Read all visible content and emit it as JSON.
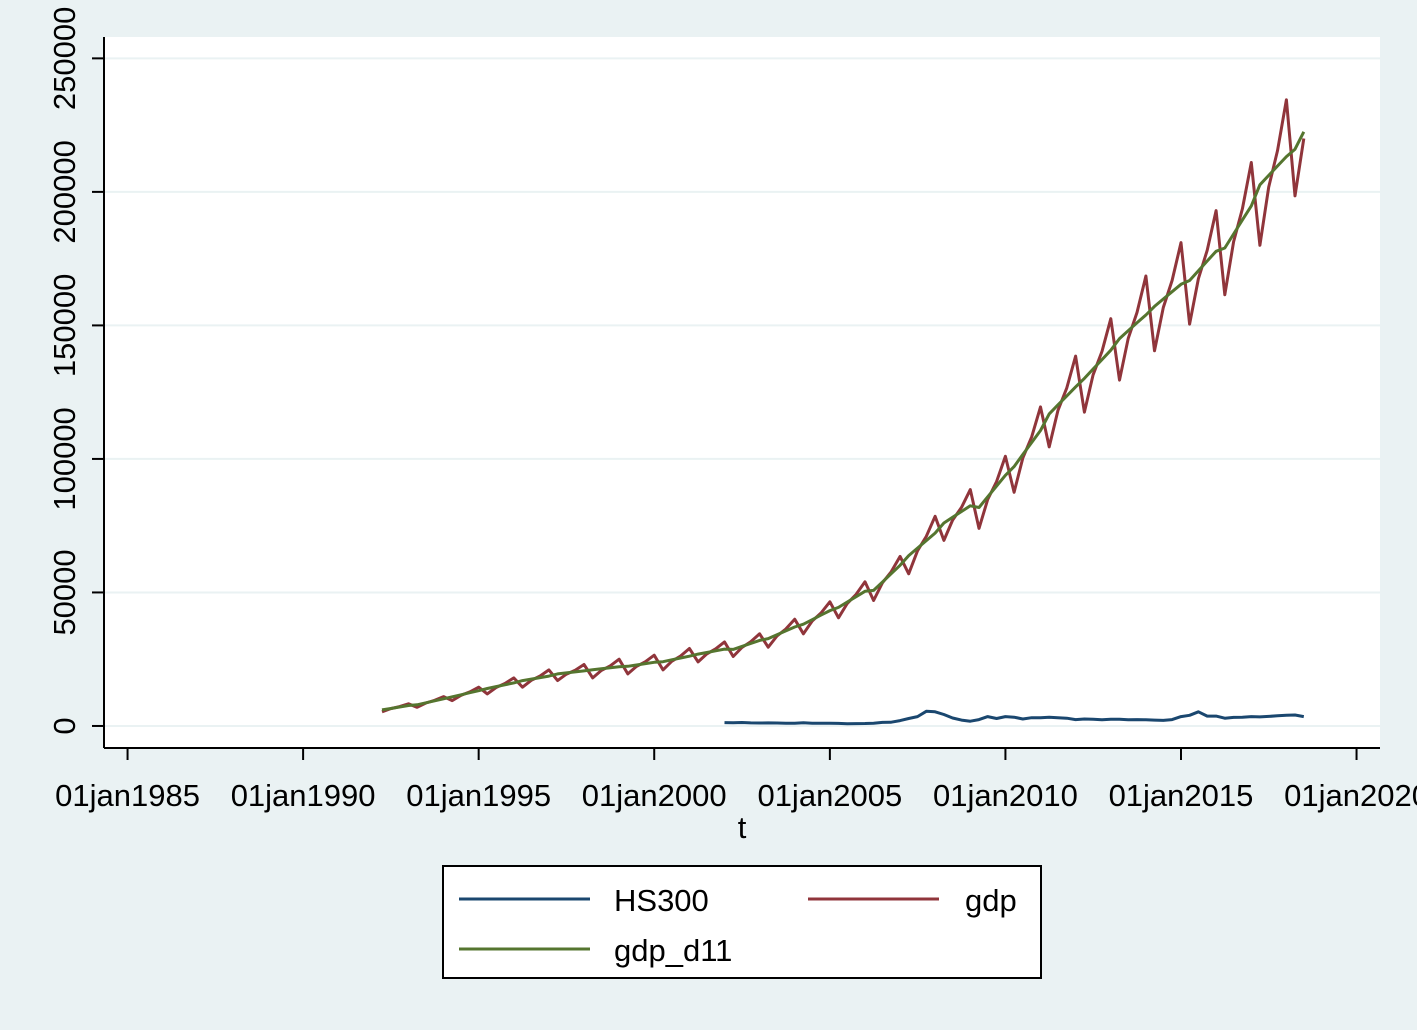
{
  "chart_data": {
    "type": "line",
    "x_label": "t",
    "x": [
      "1992-04-01",
      "1992-07-01",
      "1992-10-01",
      "1993-01-01",
      "1993-04-01",
      "1993-07-01",
      "1993-10-01",
      "1994-01-01",
      "1994-04-01",
      "1994-07-01",
      "1994-10-01",
      "1995-01-01",
      "1995-04-01",
      "1995-07-01",
      "1995-10-01",
      "1996-01-01",
      "1996-04-01",
      "1996-07-01",
      "1996-10-01",
      "1997-01-01",
      "1997-04-01",
      "1997-07-01",
      "1997-10-01",
      "1998-01-01",
      "1998-04-01",
      "1998-07-01",
      "1998-10-01",
      "1999-01-01",
      "1999-04-01",
      "1999-07-01",
      "1999-10-01",
      "2000-01-01",
      "2000-04-01",
      "2000-07-01",
      "2000-10-01",
      "2001-01-01",
      "2001-04-01",
      "2001-07-01",
      "2001-10-01",
      "2002-01-01",
      "2002-04-01",
      "2002-07-01",
      "2002-10-01",
      "2003-01-01",
      "2003-04-01",
      "2003-07-01",
      "2003-10-01",
      "2004-01-01",
      "2004-04-01",
      "2004-07-01",
      "2004-10-01",
      "2005-01-01",
      "2005-04-01",
      "2005-07-01",
      "2005-10-01",
      "2006-01-01",
      "2006-04-01",
      "2006-07-01",
      "2006-10-01",
      "2007-01-01",
      "2007-04-01",
      "2007-07-01",
      "2007-10-01",
      "2008-01-01",
      "2008-04-01",
      "2008-07-01",
      "2008-10-01",
      "2009-01-01",
      "2009-04-01",
      "2009-07-01",
      "2009-10-01",
      "2010-01-01",
      "2010-04-01",
      "2010-07-01",
      "2010-10-01",
      "2011-01-01",
      "2011-04-01",
      "2011-07-01",
      "2011-10-01",
      "2012-01-01",
      "2012-04-01",
      "2012-07-01",
      "2012-10-01",
      "2013-01-01",
      "2013-04-01",
      "2013-07-01",
      "2013-10-01",
      "2014-01-01",
      "2014-04-01",
      "2014-07-01",
      "2014-10-01",
      "2015-01-01",
      "2015-04-01",
      "2015-07-01",
      "2015-10-01",
      "2016-01-01",
      "2016-04-01",
      "2016-07-01",
      "2016-10-01",
      "2017-01-01",
      "2017-04-01",
      "2017-07-01",
      "2017-10-01",
      "2018-01-01",
      "2018-04-01",
      "2018-07-01"
    ],
    "series": [
      {
        "name": "HS300",
        "color": "#1a476f",
        "values": [
          null,
          null,
          null,
          null,
          null,
          null,
          null,
          null,
          null,
          null,
          null,
          null,
          null,
          null,
          null,
          null,
          null,
          null,
          null,
          null,
          null,
          null,
          null,
          null,
          null,
          null,
          null,
          null,
          null,
          null,
          null,
          null,
          null,
          null,
          null,
          null,
          null,
          null,
          null,
          1250,
          1200,
          1300,
          1150,
          1100,
          1150,
          1100,
          1050,
          1050,
          1200,
          1000,
          1000,
          1000,
          950,
          850,
          900,
          920,
          1050,
          1350,
          1400,
          2000,
          2800,
          3500,
          5500,
          5300,
          4300,
          3000,
          2200,
          1800,
          2400,
          3500,
          2800,
          3500,
          3300,
          2600,
          3100,
          3100,
          3300,
          3100,
          2900,
          2400,
          2600,
          2500,
          2300,
          2500,
          2500,
          2300,
          2400,
          2300,
          2200,
          2100,
          2400,
          3500,
          4000,
          5300,
          3700,
          3700,
          2900,
          3200,
          3300,
          3500,
          3400,
          3600,
          3800,
          4000,
          4100,
          3500
        ]
      },
      {
        "name": "gdp",
        "color": "#90353b",
        "values": [
          5300,
          6500,
          7250,
          8300,
          7000,
          8600,
          9600,
          11000,
          9500,
          11500,
          12750,
          14500,
          12000,
          14400,
          15900,
          18000,
          14500,
          17100,
          18730,
          21000,
          17000,
          19400,
          20900,
          23000,
          18000,
          20800,
          22550,
          25000,
          19500,
          22300,
          24050,
          26500,
          21000,
          24200,
          26200,
          29000,
          24000,
          27000,
          28880,
          31500,
          26000,
          29400,
          31530,
          34500,
          29500,
          33700,
          36330,
          40000,
          34500,
          39300,
          42300,
          46500,
          40500,
          45900,
          49280,
          54000,
          47000,
          53600,
          57730,
          63500,
          57000,
          65600,
          70980,
          78500,
          69500,
          77100,
          81850,
          88500,
          74000,
          84800,
          91550,
          101000,
          87500,
          100300,
          108300,
          119500,
          104500,
          118100,
          126600,
          138500,
          117500,
          131500,
          140250,
          152500,
          129500,
          145100,
          154850,
          168500,
          140500,
          156700,
          166830,
          181000,
          150500,
          167500,
          178130,
          193000,
          161500,
          181300,
          193680,
          211000,
          180000,
          201800,
          215430,
          234500,
          198500,
          220000
        ]
      },
      {
        "name": "gdp_d11",
        "color": "#55752f",
        "values": [
          6010,
          6560,
          7120,
          7670,
          7920,
          8670,
          9430,
          10180,
          10930,
          11690,
          12440,
          13190,
          14040,
          14730,
          15420,
          16110,
          16990,
          17550,
          18110,
          18670,
          19510,
          19890,
          20260,
          20640,
          21030,
          21400,
          21780,
          22150,
          22330,
          22840,
          23340,
          23840,
          24070,
          24760,
          25440,
          26130,
          26900,
          27530,
          28160,
          28790,
          28660,
          29790,
          30920,
          32050,
          32720,
          34160,
          35600,
          37050,
          38110,
          39800,
          41500,
          43190,
          44410,
          46420,
          48420,
          50430,
          50750,
          53890,
          57030,
          60170,
          63810,
          66620,
          69420,
          72230,
          76010,
          78160,
          80310,
          82460,
          81810,
          85830,
          89850,
          93860,
          97140,
          101650,
          106150,
          110660,
          116860,
          120240,
          123610,
          126990,
          130170,
          133680,
          137190,
          140700,
          145070,
          148010,
          150960,
          153900,
          157120,
          159880,
          162640,
          165390,
          166810,
          170460,
          174110,
          177750,
          178970,
          184240,
          189500,
          194770,
          202660,
          206180,
          209690,
          213210,
          216000,
          222500
        ]
      }
    ],
    "xlim": [
      "1984-05-01",
      "2020-09-01"
    ],
    "xticks": [
      {
        "value": "1985-01-01",
        "label": "01jan1985"
      },
      {
        "value": "1990-01-01",
        "label": "01jan1990"
      },
      {
        "value": "1995-01-01",
        "label": "01jan1995"
      },
      {
        "value": "2000-01-01",
        "label": "01jan2000"
      },
      {
        "value": "2005-01-01",
        "label": "01jan2005"
      },
      {
        "value": "2010-01-01",
        "label": "01jan2010"
      },
      {
        "value": "2015-01-01",
        "label": "01jan2015"
      },
      {
        "value": "2020-01-01",
        "label": "01jan2020"
      }
    ],
    "ylim": [
      -8250,
      258000
    ],
    "yticks": [
      0,
      50000,
      100000,
      150000,
      200000,
      250000
    ],
    "grid": true,
    "legend": "bottom"
  }
}
